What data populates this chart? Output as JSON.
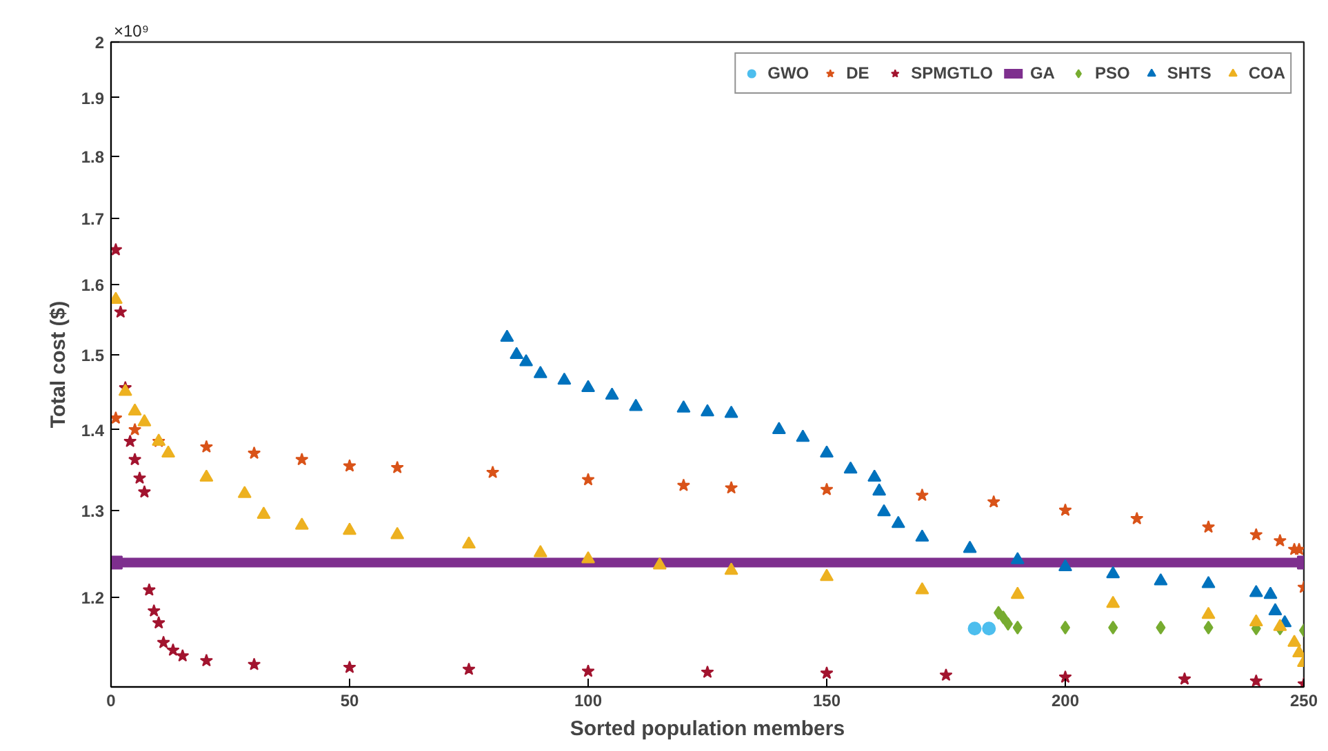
{
  "chart_data": {
    "type": "scatter",
    "xlabel": "Sorted population members",
    "ylabel": "Total cost ($)",
    "annotations": [
      "×10⁹"
    ],
    "xlim": [
      0,
      250
    ],
    "xticks": [
      0,
      50,
      100,
      150,
      200,
      250
    ],
    "ylim": [
      1.105,
      2.0
    ],
    "yticks": [
      1.2,
      1.3,
      1.4,
      1.5,
      1.6,
      1.7,
      1.8,
      1.9,
      2
    ],
    "log": "y",
    "grid": false,
    "legend": "top right",
    "series": [
      {
        "name": "GWO",
        "color": "#4dbeee",
        "marker": "circle",
        "x": [
          181,
          184
        ],
        "values": [
          1.166,
          1.166
        ]
      },
      {
        "name": "DE",
        "color": "#d95319",
        "marker": "star",
        "x": [
          1,
          5,
          10,
          20,
          30,
          40,
          50,
          60,
          80,
          100,
          120,
          130,
          150,
          170,
          185,
          200,
          215,
          230,
          240,
          245,
          248,
          249,
          250
        ],
        "values": [
          1.415,
          1.4,
          1.385,
          1.378,
          1.37,
          1.362,
          1.354,
          1.352,
          1.346,
          1.337,
          1.33,
          1.327,
          1.325,
          1.318,
          1.31,
          1.3,
          1.29,
          1.28,
          1.271,
          1.264,
          1.254,
          1.254,
          1.211
        ]
      },
      {
        "name": "SPMGTLO",
        "color": "#a2142f",
        "marker": "star",
        "x": [
          1,
          2,
          3,
          4,
          5,
          6,
          7,
          8,
          9,
          10,
          11,
          13,
          15,
          20,
          30,
          50,
          75,
          100,
          125,
          150,
          175,
          200,
          225,
          240,
          250
        ],
        "values": [
          1.652,
          1.56,
          1.455,
          1.385,
          1.362,
          1.339,
          1.322,
          1.208,
          1.185,
          1.172,
          1.151,
          1.143,
          1.137,
          1.132,
          1.128,
          1.125,
          1.123,
          1.121,
          1.12,
          1.119,
          1.117,
          1.115,
          1.113,
          1.111,
          1.108
        ]
      },
      {
        "name": "GA",
        "color": "#7e2f8e",
        "type": "line",
        "marker": "square",
        "x": [
          1,
          250
        ],
        "values": [
          1.239,
          1.239
        ]
      },
      {
        "name": "PSO",
        "color": "#77ac30",
        "marker": "diamond",
        "x": [
          186,
          187,
          188,
          190,
          200,
          210,
          220,
          230,
          240,
          245,
          250
        ],
        "values": [
          1.183,
          1.178,
          1.171,
          1.167,
          1.167,
          1.167,
          1.167,
          1.167,
          1.166,
          1.166,
          1.164
        ]
      },
      {
        "name": "SHTS",
        "color": "#0072bd",
        "marker": "triangle",
        "x": [
          83,
          85,
          87,
          90,
          95,
          100,
          105,
          110,
          120,
          125,
          130,
          140,
          145,
          150,
          155,
          160,
          161,
          162,
          165,
          170,
          180,
          190,
          200,
          210,
          220,
          230,
          240,
          243,
          244,
          246
        ],
        "values": [
          1.524,
          1.5,
          1.49,
          1.474,
          1.465,
          1.455,
          1.445,
          1.43,
          1.428,
          1.423,
          1.421,
          1.4,
          1.39,
          1.37,
          1.35,
          1.34,
          1.323,
          1.298,
          1.284,
          1.268,
          1.255,
          1.242,
          1.234,
          1.226,
          1.218,
          1.215,
          1.205,
          1.203,
          1.185,
          1.172
        ]
      },
      {
        "name": "COA",
        "color": "#edb120",
        "marker": "triangle",
        "x": [
          1,
          3,
          5,
          7,
          10,
          12,
          20,
          28,
          32,
          40,
          50,
          60,
          75,
          90,
          100,
          115,
          130,
          150,
          170,
          190,
          210,
          230,
          240,
          245,
          248,
          249,
          250
        ],
        "values": [
          1.578,
          1.45,
          1.424,
          1.41,
          1.385,
          1.37,
          1.34,
          1.32,
          1.295,
          1.282,
          1.276,
          1.271,
          1.26,
          1.25,
          1.243,
          1.236,
          1.23,
          1.223,
          1.208,
          1.203,
          1.193,
          1.181,
          1.173,
          1.168,
          1.151,
          1.14,
          1.13
        ]
      }
    ]
  }
}
